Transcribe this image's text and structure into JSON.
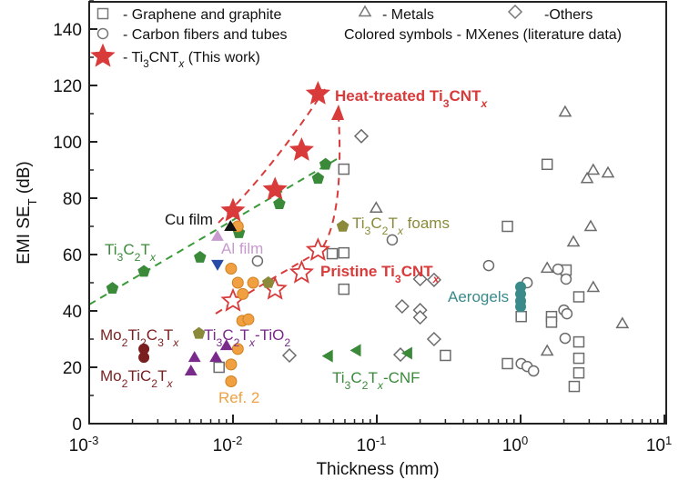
{
  "chart_data": {
    "type": "scatter",
    "xlabel": "Thickness (mm)",
    "ylabel": {
      "main": "EMI SE",
      "sub": "T",
      "unit": " (dB)"
    },
    "xscale": "log",
    "xlim": [
      0.001,
      10
    ],
    "ylim": [
      0,
      150
    ],
    "xticks": [
      {
        "base": "10",
        "exp": "-3",
        "value": 0.001
      },
      {
        "base": "10",
        "exp": "-2",
        "value": 0.01
      },
      {
        "base": "10",
        "exp": "-1",
        "value": 0.1
      },
      {
        "base": "10",
        "exp": "0",
        "value": 1
      },
      {
        "base": "10",
        "exp": "1",
        "value": 10
      }
    ],
    "yticks": [
      "0",
      "20",
      "40",
      "60",
      "80",
      "100",
      "120",
      "140"
    ],
    "legend": {
      "placement": "top",
      "entries": [
        {
          "marker": "square",
          "text": "- Graphene and graphite"
        },
        {
          "marker": "triangle",
          "text": "- Metals"
        },
        {
          "marker": "diamond",
          "text": "-Others"
        },
        {
          "marker": "circle",
          "text": "- Carbon fibers and tubes"
        },
        {
          "marker": "none",
          "text": "Colored symbols - MXenes (literature data)"
        },
        {
          "marker": "star",
          "segments": [
            [
              "- Ti",
              ""
            ],
            [
              "3",
              "sub"
            ],
            [
              "CNT",
              ""
            ],
            [
              "x",
              "subi"
            ],
            [
              " (This work)",
              ""
            ]
          ]
        }
      ]
    },
    "series": [
      {
        "id": "graphene-graphite",
        "marker": "square",
        "color": "#6b6b6b",
        "filled": false,
        "points": [
          [
            0.059,
            90.3
          ],
          [
            1.53,
            92
          ],
          [
            0.81,
            70
          ],
          [
            0.049,
            60.3
          ],
          [
            0.059,
            60.6
          ],
          [
            0.059,
            47.7
          ],
          [
            2.07,
            54.5
          ],
          [
            2.54,
            45
          ],
          [
            1.01,
            38
          ],
          [
            1.64,
            38
          ],
          [
            1.64,
            36
          ],
          [
            2.54,
            29
          ],
          [
            0.3,
            24.2
          ],
          [
            0.81,
            21.3
          ],
          [
            2.54,
            23.2
          ],
          [
            2.54,
            18
          ],
          [
            2.36,
            13.2
          ],
          [
            0.008,
            20
          ]
        ]
      },
      {
        "id": "metals",
        "marker": "triangle",
        "color": "#6b6b6b",
        "filled": false,
        "points": [
          [
            2.04,
            110.6
          ],
          [
            3.2,
            90
          ],
          [
            4.05,
            89
          ],
          [
            2.9,
            87
          ],
          [
            3.07,
            70
          ],
          [
            2.33,
            64.5
          ],
          [
            1.53,
            55.2
          ],
          [
            3.2,
            48.4
          ],
          [
            5.1,
            35.5
          ],
          [
            1.53,
            25.8
          ],
          [
            0.099,
            76.5
          ]
        ]
      },
      {
        "id": "others",
        "marker": "diamond",
        "color": "#6b6b6b",
        "filled": false,
        "points": [
          [
            0.078,
            102
          ],
          [
            0.2,
            51.3
          ],
          [
            0.25,
            51
          ],
          [
            0.15,
            41.6
          ],
          [
            0.2,
            40.3
          ],
          [
            0.2,
            37.7
          ],
          [
            0.25,
            30
          ],
          [
            0.146,
            24.5
          ],
          [
            0.0247,
            24.2
          ]
        ]
      },
      {
        "id": "carbon-fibers-tubes",
        "marker": "circle",
        "color": "#6b6b6b",
        "filled": false,
        "points": [
          [
            0.128,
            65.2
          ],
          [
            0.6,
            56.1
          ],
          [
            1.11,
            50
          ],
          [
            1.82,
            54.8
          ],
          [
            2.07,
            51.3
          ],
          [
            2.0,
            40.3
          ],
          [
            2.1,
            39
          ],
          [
            2.04,
            30.3
          ],
          [
            1.01,
            21.3
          ],
          [
            1.11,
            20.3
          ],
          [
            1.23,
            18.7
          ],
          [
            0.0148,
            57.7
          ]
        ]
      },
      {
        "id": "heat-treated-ti3cntx",
        "marker": "star",
        "color": "#d93a3a",
        "filled": true,
        "points": [
          [
            0.01,
            75.5
          ],
          [
            0.0196,
            83
          ],
          [
            0.03,
            97
          ],
          [
            0.039,
            117
          ]
        ]
      },
      {
        "id": "pristine-ti3cntx",
        "marker": "star",
        "color": "#d93a3a",
        "filled": false,
        "points": [
          [
            0.01,
            43.5
          ],
          [
            0.0196,
            47.7
          ],
          [
            0.03,
            53.5
          ],
          [
            0.039,
            61.5
          ]
        ]
      },
      {
        "id": "ti3c2tx",
        "marker": "pentagon",
        "color": "#3a8a3a",
        "filled": true,
        "points": [
          [
            0.00145,
            48
          ],
          [
            0.0024,
            54
          ],
          [
            0.0059,
            59
          ],
          [
            0.011,
            67.7
          ],
          [
            0.021,
            78
          ],
          [
            0.039,
            87
          ],
          [
            0.044,
            92
          ]
        ]
      },
      {
        "id": "ref-2",
        "marker": "ball",
        "color": "#f0a040",
        "filled": true,
        "points": [
          [
            0.0108,
            70
          ],
          [
            0.0097,
            55
          ],
          [
            0.0108,
            50
          ],
          [
            0.0138,
            50
          ],
          [
            0.0117,
            46
          ],
          [
            0.0116,
            36.5
          ],
          [
            0.0128,
            37
          ],
          [
            0.0108,
            26.5
          ],
          [
            0.0097,
            21
          ],
          [
            0.0097,
            15
          ]
        ]
      },
      {
        "id": "ti3c2tx-tio2",
        "marker": "triangle",
        "color": "#7a2a8a",
        "filled": true,
        "points": [
          [
            0.0051,
            18.7
          ],
          [
            0.0054,
            23.5
          ],
          [
            0.0076,
            23.5
          ],
          [
            0.009,
            27.7
          ]
        ]
      },
      {
        "id": "mo2tic2tx",
        "marker": "circle",
        "color": "#7a1f1f",
        "filled": true,
        "points": [
          [
            0.0024,
            26.5
          ],
          [
            0.0024,
            23.5
          ]
        ]
      },
      {
        "id": "olive-mxene",
        "marker": "pentagon",
        "color": "#8a8a3a",
        "filled": true,
        "points": [
          [
            0.0058,
            32
          ],
          [
            0.058,
            70
          ],
          [
            0.0176,
            50
          ]
        ]
      },
      {
        "id": "cu-film",
        "marker": "triangle",
        "color": "#111111",
        "filled": true,
        "points": [
          [
            0.0096,
            70
          ]
        ]
      },
      {
        "id": "al-film",
        "marker": "triangle",
        "color": "#c89ad0",
        "filled": true,
        "points": [
          [
            0.0078,
            66.5
          ]
        ]
      },
      {
        "id": "blue-mxene",
        "marker": "triangle-down",
        "color": "#2a4aa8",
        "filled": true,
        "points": [
          [
            0.0078,
            56.5
          ]
        ]
      },
      {
        "id": "ti3c2tx-cnf",
        "marker": "triangle-left",
        "color": "#3a8a3a",
        "filled": true,
        "points": [
          [
            0.046,
            24
          ],
          [
            0.072,
            26
          ],
          [
            0.164,
            25
          ]
        ]
      },
      {
        "id": "aerogels",
        "marker": "circle",
        "color": "#3a8a8a",
        "filled": true,
        "points": [
          [
            1.0,
            48.5
          ],
          [
            1.0,
            46
          ],
          [
            1.0,
            43.5
          ],
          [
            1.0,
            41.5
          ]
        ]
      }
    ],
    "annotations": [
      {
        "id": "heat-treated",
        "color": "#d93a3a",
        "bold": true,
        "segments": [
          [
            "Heat-treated Ti",
            ""
          ],
          [
            "3",
            "sub"
          ],
          [
            "CNT",
            ""
          ],
          [
            "x",
            "subi"
          ]
        ]
      },
      {
        "id": "pristine",
        "color": "#d93a3a",
        "bold": true,
        "segments": [
          [
            "Pristine Ti",
            ""
          ],
          [
            "3",
            "sub"
          ],
          [
            "CNT",
            ""
          ],
          [
            "x",
            "subi"
          ]
        ]
      },
      {
        "id": "foams",
        "color": "#8a8a3a",
        "bold": false,
        "segments": [
          [
            "Ti",
            ""
          ],
          [
            "3",
            "sub"
          ],
          [
            "C",
            ""
          ],
          [
            "2",
            "sub"
          ],
          [
            "T",
            ""
          ],
          [
            "x",
            "subi"
          ],
          [
            " foams",
            ""
          ]
        ]
      },
      {
        "id": "cu-film",
        "color": "#111111",
        "bold": false,
        "segments": [
          [
            "Cu film",
            ""
          ]
        ]
      },
      {
        "id": "ti3c2tx",
        "color": "#3a8a3a",
        "bold": false,
        "segments": [
          [
            "Ti",
            ""
          ],
          [
            "3",
            "sub"
          ],
          [
            "C",
            ""
          ],
          [
            "2",
            "sub"
          ],
          [
            "T",
            ""
          ],
          [
            "x",
            "subi"
          ]
        ]
      },
      {
        "id": "al-film",
        "color": "#c89ad0",
        "bold": false,
        "segments": [
          [
            "Al film",
            ""
          ]
        ]
      },
      {
        "id": "mo2ti2c3tx",
        "color": "#7a1f1f",
        "bold": false,
        "segments": [
          [
            "Mo",
            ""
          ],
          [
            "2",
            "sub"
          ],
          [
            "Ti",
            ""
          ],
          [
            "2",
            "sub"
          ],
          [
            "C",
            ""
          ],
          [
            "3",
            "sub"
          ],
          [
            "T",
            ""
          ],
          [
            "x",
            "subi"
          ]
        ]
      },
      {
        "id": "tio2",
        "color": "#7a2a8a",
        "bold": false,
        "segments": [
          [
            "Ti",
            ""
          ],
          [
            "3",
            "sub"
          ],
          [
            "C",
            ""
          ],
          [
            "2",
            "sub"
          ],
          [
            "T",
            ""
          ],
          [
            "x",
            "subi"
          ],
          [
            "-TiO",
            ""
          ],
          [
            "2",
            "sub"
          ]
        ]
      },
      {
        "id": "mo2tic2tx",
        "color": "#7a1f1f",
        "bold": false,
        "segments": [
          [
            "Mo",
            ""
          ],
          [
            "2",
            "sub"
          ],
          [
            "TiC",
            ""
          ],
          [
            "2",
            "sub"
          ],
          [
            "T",
            ""
          ],
          [
            "x",
            "subi"
          ]
        ]
      },
      {
        "id": "ref-2",
        "color": "#f0a040",
        "bold": false,
        "segments": [
          [
            "Ref. 2",
            ""
          ]
        ]
      },
      {
        "id": "cnf",
        "color": "#3a8a3a",
        "bold": false,
        "segments": [
          [
            "Ti",
            ""
          ],
          [
            "3",
            "sub"
          ],
          [
            "C",
            ""
          ],
          [
            "2",
            "sub"
          ],
          [
            "T",
            ""
          ],
          [
            "x",
            "subi"
          ],
          [
            "-CNF",
            ""
          ]
        ]
      },
      {
        "id": "aerogels",
        "color": "#3a8a8a",
        "bold": false,
        "segments": [
          [
            "Aerogels",
            ""
          ]
        ]
      }
    ],
    "grid": false
  }
}
